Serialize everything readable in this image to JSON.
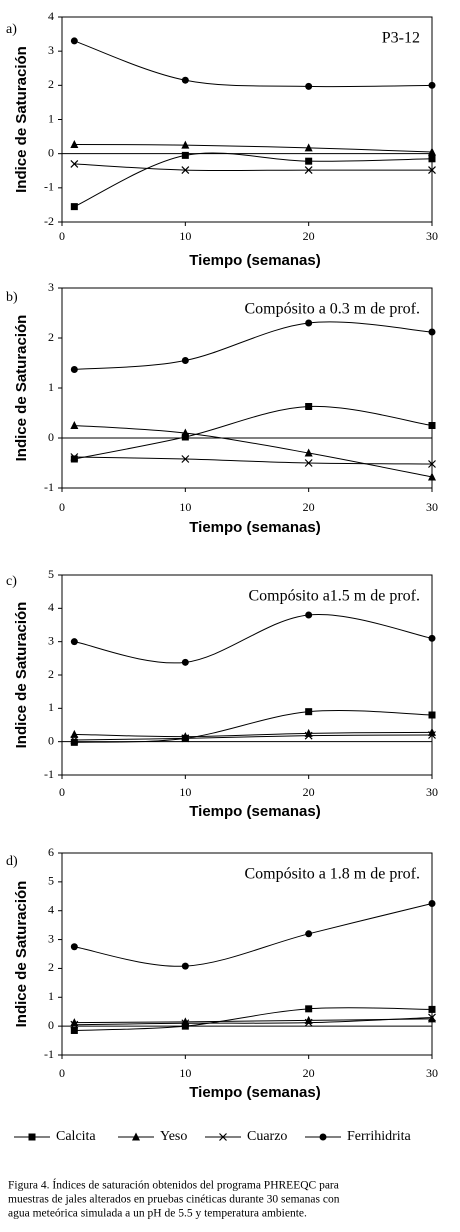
{
  "chart_data": [
    {
      "type": "line",
      "panel": "a)",
      "annotation": "P3-12",
      "xlabel": "Tiempo (semanas)",
      "ylabel": "Indice de Saturación",
      "x": [
        1,
        10,
        20,
        30
      ],
      "xlim": [
        0,
        30
      ],
      "xticks": [
        0,
        10,
        20,
        30
      ],
      "ylim": [
        -2,
        4
      ],
      "yticks": [
        -2,
        -1,
        0,
        1,
        2,
        3,
        4
      ],
      "series": [
        {
          "name": "Calcita",
          "marker": "square",
          "color": "#000000",
          "values": [
            -1.55,
            -0.05,
            -0.22,
            -0.15
          ]
        },
        {
          "name": "Yeso",
          "marker": "triangle",
          "color": "#000000",
          "values": [
            0.27,
            0.25,
            0.17,
            0.05
          ]
        },
        {
          "name": "Cuarzo",
          "marker": "x",
          "color": "#000000",
          "values": [
            -0.3,
            -0.48,
            -0.48,
            -0.48
          ]
        },
        {
          "name": "Ferrihidrita",
          "marker": "circle",
          "color": "#000000",
          "values": [
            3.3,
            2.15,
            1.97,
            2.0
          ]
        }
      ]
    },
    {
      "type": "line",
      "panel": "b)",
      "annotation": "Compósito a 0.3 m de prof.",
      "xlabel": "Tiempo (semanas)",
      "ylabel": "Indice de Saturación",
      "x": [
        1,
        10,
        20,
        30
      ],
      "xlim": [
        0,
        30
      ],
      "xticks": [
        0,
        10,
        20,
        30
      ],
      "ylim": [
        -1,
        3
      ],
      "yticks": [
        -1,
        0,
        1,
        2,
        3
      ],
      "series": [
        {
          "name": "Calcita",
          "marker": "square",
          "color": "#000000",
          "values": [
            -0.42,
            0.02,
            0.63,
            0.25
          ]
        },
        {
          "name": "Yeso",
          "marker": "triangle",
          "color": "#000000",
          "values": [
            0.25,
            0.1,
            -0.3,
            -0.78
          ]
        },
        {
          "name": "Cuarzo",
          "marker": "x",
          "color": "#000000",
          "values": [
            -0.38,
            -0.42,
            -0.5,
            -0.52
          ]
        },
        {
          "name": "Ferrihidrita",
          "marker": "circle",
          "color": "#000000",
          "values": [
            1.37,
            1.55,
            2.3,
            2.12
          ]
        }
      ]
    },
    {
      "type": "line",
      "panel": "c)",
      "annotation": "Compósito a1.5 m de prof.",
      "xlabel": "Tiempo (semanas)",
      "ylabel": "Indice de Saturación",
      "x": [
        1,
        10,
        20,
        30
      ],
      "xlim": [
        0,
        30
      ],
      "xticks": [
        0,
        10,
        20,
        30
      ],
      "ylim": [
        -1,
        5
      ],
      "yticks": [
        -1,
        0,
        1,
        2,
        3,
        4,
        5
      ],
      "series": [
        {
          "name": "Calcita",
          "marker": "square",
          "color": "#000000",
          "values": [
            -0.02,
            0.1,
            0.9,
            0.8
          ]
        },
        {
          "name": "Yeso",
          "marker": "triangle",
          "color": "#000000",
          "values": [
            0.22,
            0.15,
            0.25,
            0.28
          ]
        },
        {
          "name": "Cuarzo",
          "marker": "x",
          "color": "#000000",
          "values": [
            0.05,
            0.1,
            0.18,
            0.2
          ]
        },
        {
          "name": "Ferrihidrita",
          "marker": "circle",
          "color": "#000000",
          "values": [
            3.0,
            2.38,
            3.8,
            3.1
          ]
        }
      ]
    },
    {
      "type": "line",
      "panel": "d)",
      "annotation": "Compósito a 1.8 m de prof.",
      "xlabel": "Tiempo (semanas)",
      "ylabel": "Indice de Saturación",
      "x": [
        1,
        10,
        20,
        30
      ],
      "xlim": [
        0,
        30
      ],
      "xticks": [
        0,
        10,
        20,
        30
      ],
      "ylim": [
        -1,
        6
      ],
      "yticks": [
        -1,
        0,
        1,
        2,
        3,
        4,
        5,
        6
      ],
      "series": [
        {
          "name": "Calcita",
          "marker": "square",
          "color": "#000000",
          "values": [
            -0.15,
            0.0,
            0.6,
            0.58
          ]
        },
        {
          "name": "Yeso",
          "marker": "triangle",
          "color": "#000000",
          "values": [
            0.12,
            0.15,
            0.2,
            0.25
          ]
        },
        {
          "name": "Cuarzo",
          "marker": "x",
          "color": "#000000",
          "values": [
            0.05,
            0.1,
            0.12,
            0.3
          ]
        },
        {
          "name": "Ferrihidrita",
          "marker": "circle",
          "color": "#000000",
          "values": [
            2.75,
            2.08,
            3.2,
            4.25
          ]
        }
      ]
    }
  ],
  "caption": [
    "Figura 4. Índices de saturación obtenidos del programa PHREEQC para",
    "muestras de jales alterados en pruebas cinéticas durante 30 semanas con",
    "agua meteórica simulada a un pH de 5.5 y temperatura ambiente."
  ]
}
